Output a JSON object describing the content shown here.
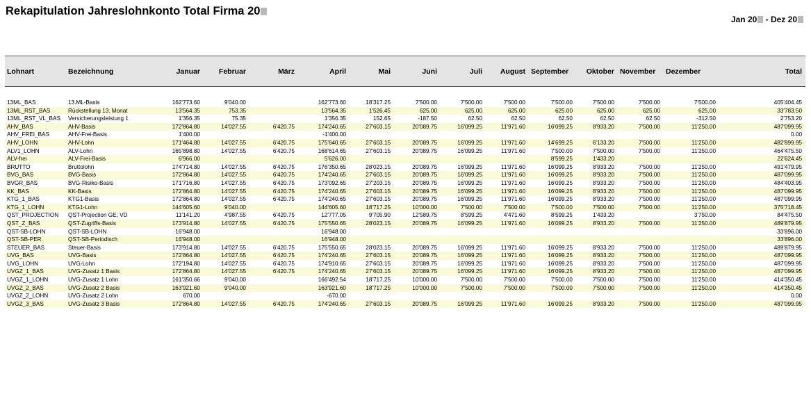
{
  "report": {
    "title": "Rekapitulation Jahreslohnkonto Total Firma 20",
    "period": "Jan 20",
    "period_sep": " - Dez 20"
  },
  "columns": [
    "Lohnart",
    "Bezeichnung",
    "Januar",
    "Februar",
    "März",
    "April",
    "Mai",
    "Juni",
    "Juli",
    "August",
    "September",
    "Oktober",
    "November",
    "Dezember",
    "Total"
  ],
  "rows": [
    {
      "lohnart": "13ML_BAS",
      "bez": "13.ML-Basis",
      "v": [
        "162'773.60",
        "9'040.00",
        "",
        "162'773.60",
        "18'317.25",
        "7'500.00",
        "7'500.00",
        "7'500.00",
        "7'500.00",
        "7'500.00",
        "7'500.00",
        "7'500.00",
        "405'404.45"
      ]
    },
    {
      "lohnart": "13ML_RST_BAS",
      "bez": "Rückstellung 13. Monat",
      "v": [
        "13'564.35",
        "753.35",
        "",
        "13'564.35",
        "1'526.45",
        "625.00",
        "625.00",
        "625.00",
        "625.00",
        "625.00",
        "625.00",
        "625.00",
        "33'783.50"
      ]
    },
    {
      "lohnart": "13ML_RST_VL_BAS",
      "bez": "Versicherungsleistung 1",
      "v": [
        "1'356.35",
        "75.35",
        "",
        "1'356.35",
        "152.65",
        "-187.50",
        "62.50",
        "62.50",
        "62.50",
        "62.50",
        "62.50",
        "-312.50",
        "2'753.20"
      ]
    },
    {
      "lohnart": "AHV_BAS",
      "bez": "AHV-Basis",
      "v": [
        "172'864.80",
        "14'027.55",
        "6'420.75",
        "174'240.65",
        "27'603.15",
        "20'089.75",
        "16'099.25",
        "11'971.60",
        "16'099.25",
        "8'933.20",
        "7'500.00",
        "11'250.00",
        "487'099.95"
      ]
    },
    {
      "lohnart": "AHV_FREI_BAS",
      "bez": "AHV-Frei-Basis",
      "v": [
        "1'400.00",
        "",
        "",
        "-1'400.00",
        "",
        "",
        "",
        "",
        "",
        "",
        "",
        "",
        "0.00"
      ]
    },
    {
      "lohnart": "AHV_LOHN",
      "bez": "AHV-Lohn",
      "v": [
        "171'464.80",
        "14'027.55",
        "6'420.75",
        "175'640.65",
        "27'603.15",
        "20'089.75",
        "16'099.25",
        "11'971.60",
        "14'699.25",
        "6'133.20",
        "7'500.00",
        "11'250.00",
        "482'899.95"
      ]
    },
    {
      "lohnart": "ALV1_LOHN",
      "bez": "ALV-Lohn",
      "v": [
        "165'898.80",
        "14'027.55",
        "6'420.75",
        "168'614.65",
        "27'603.15",
        "20'089.75",
        "16'099.25",
        "11'971.60",
        "7'500.00",
        "7'500.00",
        "7'500.00",
        "11'250.00",
        "464'475.50"
      ]
    },
    {
      "lohnart": "ALV-frei",
      "bez": "ALV-Frei-Basis",
      "v": [
        "6'966.00",
        "",
        "",
        "5'626.00",
        "",
        "",
        "",
        "",
        "8'599.25",
        "1'433.20",
        "",
        "",
        "22'624.45"
      ]
    },
    {
      "lohnart": "BRUTTO",
      "bez": "Bruttolohn",
      "v": [
        "174'714.80",
        "14'027.55",
        "6'420.75",
        "176'350.65",
        "28'023.15",
        "20'089.75",
        "16'099.25",
        "11'971.60",
        "16'099.25",
        "8'933.20",
        "7'500.00",
        "11'250.00",
        "491'479.95"
      ]
    },
    {
      "lohnart": "BVG_BAS",
      "bez": "BVG-Basis",
      "v": [
        "172'864.80",
        "14'027.55",
        "6'420.75",
        "174'240.65",
        "27'603.15",
        "20'089.75",
        "16'099.25",
        "11'971.60",
        "16'099.25",
        "8'933.20",
        "7'500.00",
        "11'250.00",
        "487'099.95"
      ]
    },
    {
      "lohnart": "BVGR_BAS",
      "bez": "BVG-Risiko-Basis",
      "v": [
        "171'716.80",
        "14'027.55",
        "6'420.75",
        "173'092.65",
        "27'203.15",
        "20'089.75",
        "16'099.25",
        "11'971.60",
        "16'099.25",
        "8'933.20",
        "7'500.00",
        "11'250.00",
        "484'403.95"
      ]
    },
    {
      "lohnart": "KK_BAS",
      "bez": "KK-Basis",
      "v": [
        "172'864.80",
        "14'027.55",
        "6'420.75",
        "174'240.65",
        "27'603.15",
        "20'089.75",
        "16'099.25",
        "11'971.60",
        "16'099.25",
        "8'933.20",
        "7'500.00",
        "11'250.00",
        "487'099.95"
      ]
    },
    {
      "lohnart": "KTG_1_BAS",
      "bez": "KTG1-Basis",
      "v": [
        "172'864.80",
        "14'027.55",
        "6'420.75",
        "174'240.65",
        "27'603.15",
        "20'089.75",
        "16'099.25",
        "11'971.60",
        "16'099.25",
        "8'933.20",
        "7'500.00",
        "11'250.00",
        "487'099.95"
      ]
    },
    {
      "lohnart": "KTG_1_LOHN",
      "bez": "KTG1-Lohn",
      "v": [
        "144'605.60",
        "9'040.00",
        "",
        "144'605.60",
        "18'717.25",
        "10'000.00",
        "7'500.00",
        "7'500.00",
        "7'500.00",
        "7'500.00",
        "7'500.00",
        "11'250.00",
        "375'718.45"
      ]
    },
    {
      "lohnart": "QST_PROJECTION",
      "bez": "QST-Projection GE, VD",
      "v": [
        "11'141.20",
        "4'987.55",
        "6'420.75",
        "12'777.05",
        "9'705.90",
        "12'589.75",
        "8'599.25",
        "4'471.60",
        "8'599.25",
        "1'433.20",
        "",
        "3'750.00",
        "84'475.50"
      ]
    },
    {
      "lohnart": "QST_Z_BAS",
      "bez": "QST-Zugriffs-Basis",
      "v": [
        "173'914.80",
        "14'027.55",
        "6'420.75",
        "175'550.65",
        "28'023.15",
        "20'089.75",
        "16'099.25",
        "11'971.60",
        "16'099.25",
        "8'933.20",
        "7'500.00",
        "11'250.00",
        "489'879.95"
      ]
    },
    {
      "lohnart": "QST-SB-LOHN",
      "bez": "QST-SB-LOHN",
      "v": [
        "16'948.00",
        "",
        "",
        "16'948.00",
        "",
        "",
        "",
        "",
        "",
        "",
        "",
        "",
        "33'896.00"
      ]
    },
    {
      "lohnart": "QST-SB-PER",
      "bez": "QST-SB-Periodisch",
      "v": [
        "16'948.00",
        "",
        "",
        "16'948.00",
        "",
        "",
        "",
        "",
        "",
        "",
        "",
        "",
        "33'896.00"
      ]
    },
    {
      "lohnart": "STEUER_BAS",
      "bez": "Steuer-Basis",
      "v": [
        "173'914.80",
        "14'027.55",
        "6'420.75",
        "175'550.65",
        "28'023.15",
        "20'089.75",
        "16'099.25",
        "11'971.60",
        "16'099.25",
        "8'933.20",
        "7'500.00",
        "11'250.00",
        "489'879.95"
      ]
    },
    {
      "lohnart": "UVG_BAS",
      "bez": "UVG-Basis",
      "v": [
        "172'864.80",
        "14'027.55",
        "6'420.75",
        "174'240.65",
        "27'603.15",
        "20'089.75",
        "16'099.25",
        "11'971.60",
        "16'099.25",
        "8'933.20",
        "7'500.00",
        "11'250.00",
        "487'099.95"
      ]
    },
    {
      "lohnart": "UVG_LOHN",
      "bez": "UVG-Lohn",
      "v": [
        "172'194.80",
        "14'027.55",
        "6'420.75",
        "174'910.65",
        "27'603.15",
        "20'089.75",
        "16'099.25",
        "11'971.60",
        "16'099.25",
        "8'933.20",
        "7'500.00",
        "11'250.00",
        "487'099.95"
      ]
    },
    {
      "lohnart": "UVGZ_1_BAS",
      "bez": "UVG-Zusatz 1 Basis",
      "v": [
        "172'864.80",
        "14'027.55",
        "6'420.75",
        "174'240.65",
        "27'603.15",
        "20'089.75",
        "16'099.25",
        "11'971.60",
        "16'099.25",
        "8'933.20",
        "7'500.00",
        "11'250.00",
        "487'099.95"
      ]
    },
    {
      "lohnart": "UVGZ_1_LOHN",
      "bez": "UVG-Zusatz 1 Lohn",
      "v": [
        "161'350.66",
        "9'040.00",
        "",
        "166'492.54",
        "18'717.25",
        "10'000.00",
        "7'500.00",
        "7'500.00",
        "7'500.00",
        "7'500.00",
        "7'500.00",
        "11'250.00",
        "414'350.45"
      ]
    },
    {
      "lohnart": "UVGZ_2_BAS",
      "bez": "UVG-Zusatz 2 Basis",
      "v": [
        "163'921.60",
        "9'040.00",
        "",
        "163'921.60",
        "18'717.25",
        "10'000.00",
        "7'500.00",
        "7'500.00",
        "7'500.00",
        "7'500.00",
        "7'500.00",
        "11'250.00",
        "414'350.45"
      ]
    },
    {
      "lohnart": "UVGZ_2_LOHN",
      "bez": "UVG-Zusatz 2 Lohn",
      "v": [
        "670.00",
        "",
        "",
        "-670.00",
        "",
        "",
        "",
        "",
        "",
        "",
        "",
        "",
        "0.00"
      ]
    },
    {
      "lohnart": "UVGZ_3_BAS",
      "bez": "UVG-Zusatz 3 Basis",
      "v": [
        "172'864.80",
        "14'027.55",
        "6'420.75",
        "174'240.65",
        "27'603.15",
        "20'089.75",
        "16'099.25",
        "11'971.60",
        "16'099.25",
        "8'933.20",
        "7'500.00",
        "11'250.00",
        "487'099.95"
      ]
    }
  ]
}
